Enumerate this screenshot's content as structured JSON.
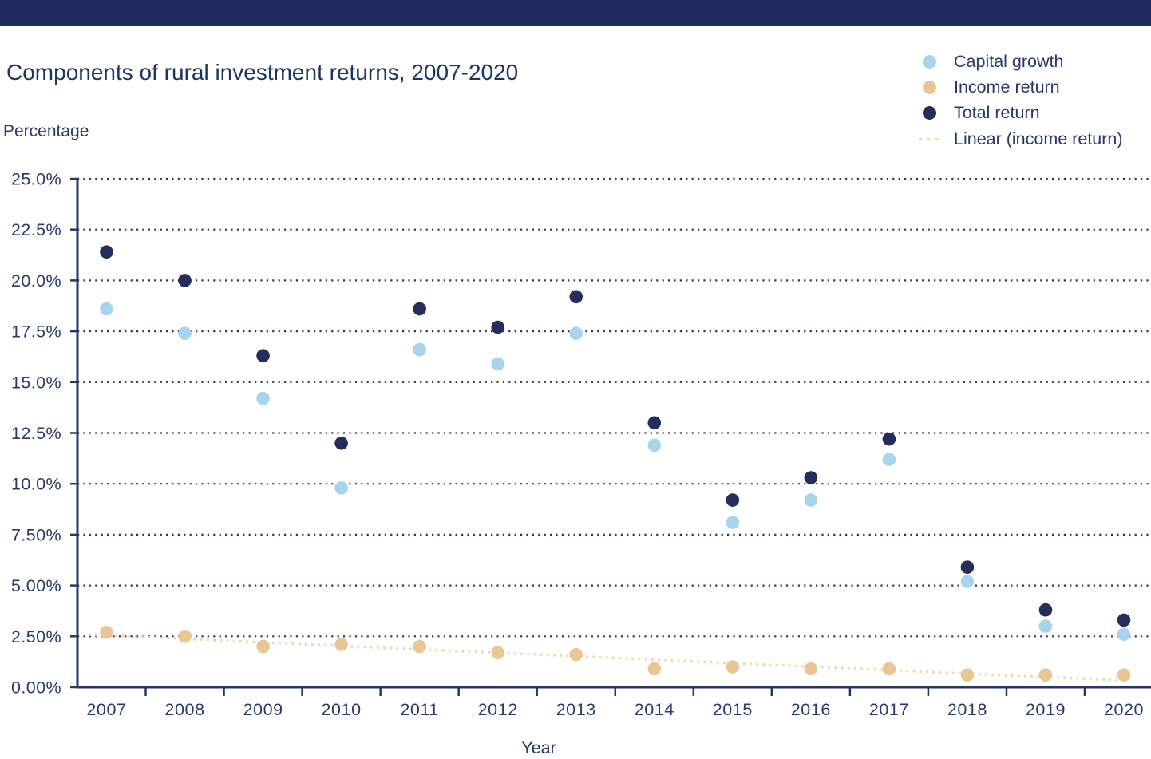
{
  "page": {
    "top_bar_color": "#1f2a5e",
    "background": "#ffffff"
  },
  "chart_data": {
    "type": "scatter",
    "title": "Components of rural investment returns, 2007-2020",
    "ylabel": "Percentage",
    "xlabel": "Year",
    "categories": [
      "2007",
      "2008",
      "2009",
      "2010",
      "2011",
      "2012",
      "2013",
      "2014",
      "2015",
      "2016",
      "2017",
      "2018",
      "2019",
      "2020"
    ],
    "series": [
      {
        "name": "Capital growth",
        "color": "#a6d4ed",
        "values": [
          18.6,
          17.4,
          14.2,
          9.8,
          16.6,
          15.9,
          17.4,
          11.9,
          8.1,
          9.2,
          11.2,
          5.2,
          3.0,
          2.6
        ]
      },
      {
        "name": "Income return",
        "color": "#eac694",
        "values": [
          2.7,
          2.5,
          2.0,
          2.1,
          2.0,
          1.7,
          1.6,
          0.9,
          1.0,
          0.9,
          0.9,
          0.6,
          0.6,
          0.6
        ]
      },
      {
        "name": "Total return",
        "color": "#242e5a",
        "values": [
          21.4,
          20.0,
          16.3,
          12.0,
          18.6,
          17.7,
          19.2,
          13.0,
          9.2,
          10.3,
          12.2,
          5.9,
          3.8,
          3.3
        ]
      }
    ],
    "trendline": {
      "name": "Linear (income return)",
      "series_ref": "Income return",
      "color": "#f2d6a6",
      "start_value": 2.54,
      "end_value": 0.33
    },
    "y_axis": {
      "ticks": [
        {
          "label": "25.0%",
          "value": 25
        },
        {
          "label": "22.5%",
          "value": 22.5
        },
        {
          "label": "20.0%",
          "value": 20
        },
        {
          "label": "17.5%",
          "value": 17.5
        },
        {
          "label": "15.0%",
          "value": 15
        },
        {
          "label": "12.5%",
          "value": 12.5
        },
        {
          "label": "10.0%",
          "value": 10
        },
        {
          "label": "7.50%",
          "value": 7.5
        },
        {
          "label": "5.00%",
          "value": 5
        },
        {
          "label": "2.50%",
          "value": 2.5
        },
        {
          "label": "0.00%",
          "value": 0
        }
      ],
      "ylim": [
        0,
        25
      ]
    },
    "grid": "dotted horizontal gridlines",
    "legend_position": "top-right",
    "colors": {
      "axis": "#2b3566",
      "gridline": "#2b3566",
      "text": "#273a6b",
      "title": "#1e3464"
    }
  }
}
